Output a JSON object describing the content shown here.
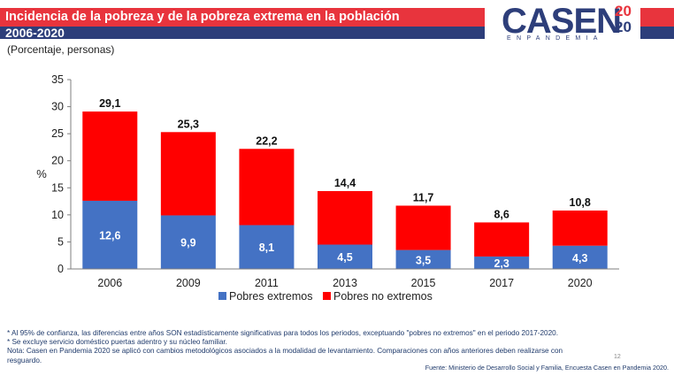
{
  "header": {
    "title": "Incidencia de la pobreza y de la pobreza extrema en la población",
    "subtitle": "2006-2020"
  },
  "logo": {
    "text": "CASEN",
    "year_top": "20",
    "year_bottom": "20",
    "tagline": "ENPANDEMIA"
  },
  "units": "(Porcentaje, personas)",
  "colors": {
    "extreme": "#4472c4",
    "non_extreme": "#ff0000",
    "header_red": "#e8343d",
    "header_blue": "#2d3e7a"
  },
  "chart_data": {
    "type": "bar",
    "stacked": true,
    "categories": [
      "2006",
      "2009",
      "2011",
      "2013",
      "2015",
      "2017",
      "2020"
    ],
    "series": [
      {
        "name": "Pobres extremos",
        "values": [
          12.6,
          9.9,
          8.1,
          4.5,
          3.5,
          2.3,
          4.3
        ]
      },
      {
        "name": "Pobres no extremos",
        "values": [
          16.5,
          15.4,
          14.1,
          9.9,
          8.2,
          6.3,
          6.5
        ]
      }
    ],
    "segment_labels": [
      "12,6",
      "9,9",
      "8,1",
      "4,5",
      "3,5",
      "2,3",
      "4,3"
    ],
    "total_labels": [
      "29,1",
      "25,3",
      "22,2",
      "14,4",
      "11,7",
      "8,6",
      "10,8"
    ],
    "ylabel": "%",
    "ylim": [
      0,
      35
    ],
    "yticks": [
      0,
      5,
      10,
      15,
      20,
      25,
      30,
      35
    ],
    "legend_position": "bottom",
    "grid": false
  },
  "notes": [
    "* Al 95% de confianza, las diferencias entre años SON estadísticamente significativas para todos los periodos, exceptuando \"pobres no extremos\" en el periodo 2017-2020.",
    "* Se excluye servicio doméstico puertas adentro y su núcleo familiar.",
    "Nota: Casen en Pandemia 2020 se aplicó con cambios metodológicos asociados a la modalidad de levantamiento. Comparaciones con años anteriores deben realizarse con",
    "resguardo."
  ],
  "page_number": "12",
  "source": "Fuente: Ministerio de Desarrollo Social y Familia, Encuesta Casen en Pandemia 2020."
}
